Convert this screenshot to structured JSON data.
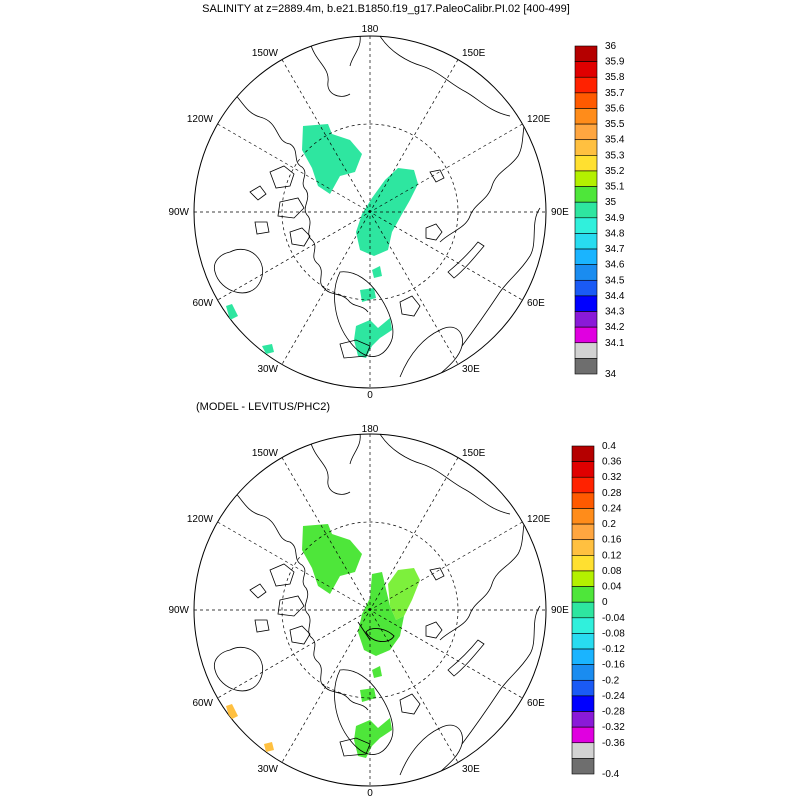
{
  "panel1": {
    "title": "SALINITY at z=2889.4m, b.e21.B1850.f19_g17.PaleoCalibr.PI.02 [400-499]",
    "lon_labels": {
      "top": "180",
      "bottom": "0",
      "left": "90W",
      "right": "90E",
      "ul1": "150W",
      "ul2": "120W",
      "ur1": "150E",
      "ur2": "120E",
      "ll1": "60W",
      "ll2": "30W",
      "lr1": "60E",
      "lr2": "30E"
    },
    "colorbar": {
      "labels": [
        "36",
        "35.9",
        "35.8",
        "35.7",
        "35.6",
        "35.5",
        "35.4",
        "35.3",
        "35.2",
        "35.1",
        "35",
        "34.9",
        "34.8",
        "34.7",
        "34.6",
        "34.5",
        "34.4",
        "34.3",
        "34.2",
        "34.1",
        "34"
      ],
      "colors": [
        "#b50000",
        "#e00000",
        "#ff2200",
        "#ff5a00",
        "#ff8c1a",
        "#ffa640",
        "#ffc040",
        "#ffe030",
        "#b4f000",
        "#4ee63a",
        "#2ee6a0",
        "#30f0dc",
        "#28dcf0",
        "#1ab4ff",
        "#1a8cf0",
        "#1a5af5",
        "#0000ff",
        "#8a1ad8",
        "#e000e0",
        "#d2d2d2",
        "#6e6e6e"
      ]
    },
    "fill_color": "#2ee6a0",
    "coast_fill_color": "#2ee6a0"
  },
  "panel2": {
    "title": "(MODEL - LEVITUS/PHC2)",
    "lon_labels": {
      "top": "180",
      "bottom": "0",
      "left": "90W",
      "right": "90E",
      "ul1": "150W",
      "ul2": "120W",
      "ur1": "150E",
      "ur2": "120E",
      "ll1": "60W",
      "ll2": "30W",
      "lr1": "60E",
      "lr2": "30E"
    },
    "colorbar": {
      "labels": [
        "0.4",
        "0.36",
        "0.32",
        "0.28",
        "0.24",
        "0.2",
        "0.16",
        "0.12",
        "0.08",
        "0.04",
        "0",
        "-0.04",
        "-0.08",
        "-0.12",
        "-0.16",
        "-0.2",
        "-0.24",
        "-0.28",
        "-0.32",
        "-0.36",
        "-0.4"
      ],
      "colors": [
        "#b50000",
        "#e00000",
        "#ff2200",
        "#ff5a00",
        "#ff8c1a",
        "#ffa640",
        "#ffc040",
        "#ffe030",
        "#b4f000",
        "#4ee63a",
        "#2ee6a0",
        "#30f0dc",
        "#28dcf0",
        "#1ab4ff",
        "#1a8cf0",
        "#1a5af5",
        "#0000ff",
        "#8a1ad8",
        "#e000e0",
        "#d2d2d2",
        "#6e6e6e"
      ]
    },
    "fill_color": "#4ee63a",
    "fill_color_light": "#7df03c",
    "coast_fill_color": "#ffc040"
  }
}
